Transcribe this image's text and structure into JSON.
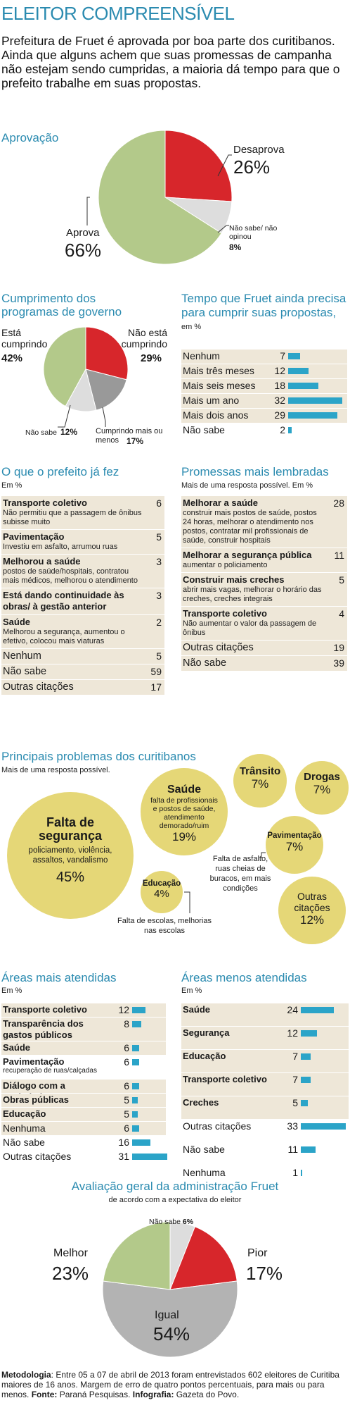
{
  "header": {
    "title": "ELEITOR COMPREENSÍVEL",
    "intro": "Prefeitura de Fruet é aprovada por boa parte dos curitibanos. Ainda que alguns achem que suas promessas de campanha não estejam sendo cumpridas, a maioria dá tempo para que o prefeito trabalhe em suas propostas."
  },
  "colors": {
    "green": "#b3c98a",
    "red": "#d7262b",
    "gray": "#c5c5c5",
    "lightgray": "#dddddd",
    "blue": "#2b8bb0",
    "bar": "#2ba4c8",
    "yellow": "#e5d777",
    "shade": "#eee7d8"
  },
  "aprovacao": {
    "title": "Aprovação",
    "labels": {
      "desaprova": "Desaprova",
      "desaprova_value": "26%",
      "nao_sabe": "Não sabe/ não opinou",
      "nao_sabe_value": "8%",
      "aprova": "Aprova",
      "aprova_value": "66%"
    }
  },
  "cumprimento": {
    "title": "Cumprimento dos programas de governo",
    "labels": {
      "cumprindo": "Está cumprindo",
      "cumprindo_value": "42%",
      "nao_cumprindo": "Não está cumprindo",
      "nao_cumprindo_value": "29%",
      "nao_sabe": "Não sabe",
      "nao_sabe_value": "12%",
      "mais_menos": "Cumprindo mais ou menos",
      "mais_menos_value": "17%"
    }
  },
  "tempo": {
    "title": "Tempo que Fruet ainda precisa para cumprir suas propostas,",
    "unit": "em %"
  },
  "prefeito_fez": {
    "title": "O que o prefeito já fez",
    "unit": "Em %",
    "items": [
      {
        "label": "Transporte coletivo",
        "desc": "Não permitiu que a passagem de ônibus subisse muito",
        "value": "6"
      },
      {
        "label": "Pavimentação",
        "desc": "Investiu em asfalto, arrumou ruas",
        "value": "5"
      },
      {
        "label": "Melhorou a saúde",
        "desc": "postos de saúde/hospitais, contratou mais médicos, melhorou o atendimento",
        "value": "3"
      },
      {
        "label": "Está dando continuidade às obras/ à gestão anterior",
        "desc": "",
        "value": "3"
      },
      {
        "label": "Saúde",
        "desc": "Melhorou a segurança, aumentou o efetivo, colocou mais viaturas",
        "value": "2"
      },
      {
        "label": "Nenhum",
        "desc": "",
        "value": "5"
      },
      {
        "label": "Não sabe",
        "desc": "",
        "value": "59"
      },
      {
        "label": "Outras citações",
        "desc": "",
        "value": "17"
      }
    ]
  },
  "promessas": {
    "title": "Promessas mais lembradas",
    "unit": "Mais de uma resposta possível. Em %",
    "items": [
      {
        "label": "Melhorar a saúde",
        "desc": "construir mais postos de saúde, postos 24 horas, melhorar o atendimento nos postos, contratar mil profissionais de saúde, construir hospitais",
        "value": "28"
      },
      {
        "label": "Melhorar a segurança pública",
        "desc": "aumentar o policiamento",
        "value": "11"
      },
      {
        "label": "Construir mais creches",
        "desc": "abrir mais vagas, melhorar o horário das creches, creches integrais",
        "value": "5"
      },
      {
        "label": "Transporte coletivo",
        "desc": "Não aumentar o valor da passagem de ônibus",
        "value": "4"
      },
      {
        "label": "Outras citações",
        "desc": "",
        "value": "19"
      },
      {
        "label": "Não sabe",
        "desc": "",
        "value": "39"
      }
    ]
  },
  "problemas": {
    "title": "Principais problemas dos curitibanos",
    "unit": "Mais de uma resposta possível.",
    "bubbles": [
      {
        "name": "Falta de segurança",
        "desc": "policiamento, violência, assaltos, vandalismo",
        "value": "45%"
      },
      {
        "name": "Saúde",
        "desc": "falta de profissionais e postos de saúde, atendimento demorado/ruim",
        "value": "19%"
      },
      {
        "name": "Trânsito",
        "desc": "",
        "value": "7%"
      },
      {
        "name": "Drogas",
        "desc": "",
        "value": "7%"
      },
      {
        "name": "Pavimentação",
        "desc": "",
        "value": "7%"
      },
      {
        "name": "Educação",
        "desc": "",
        "value": "4%"
      },
      {
        "name": "Outras citações",
        "desc": "",
        "value": "12%"
      }
    ],
    "note_pav": "Falta de asfalto, ruas cheias de buracos, em mais condições",
    "note_edu": "Falta de escolas, melhorias nas escolas"
  },
  "areas_mais": {
    "title": "Áreas mais atendidas",
    "unit": "Em %",
    "sub_pav": "recuperação de ruas/calçadas"
  },
  "areas_menos": {
    "title": "Áreas menos atendidas",
    "unit": "Em %"
  },
  "avaliacao": {
    "title": "Avaliação geral da administração Fruet",
    "subtitle": "de acordo com a expectativa do eleitor",
    "labels": {
      "melhor": "Melhor",
      "melhor_value": "23%",
      "pior": "Pior",
      "pior_value": "17%",
      "igual": "Igual",
      "igual_value": "54%",
      "nao_sabe": "Não sabe",
      "nao_sabe_value": "6%"
    }
  },
  "footer": {
    "metodologia_label": "Metodologia",
    "metodologia": ": Entre 05 a 07 de abril de 2013 foram entrevistados 602 eleitores de Curitiba maiores de 16 anos. Margem de erro de quatro pontos percentuais, para mais ou para menos.",
    "fonte_label": "Fonte:",
    "fonte": "Paraná Pesquisas.",
    "info_label": "Infografia:",
    "info": "Gazeta do Povo."
  },
  "chart_data": [
    {
      "type": "pie",
      "title": "Aprovação",
      "categories": [
        "Aprova",
        "Desaprova",
        "Não sabe/ não opinou"
      ],
      "values": [
        66,
        26,
        8
      ]
    },
    {
      "type": "pie",
      "title": "Cumprimento dos programas de governo",
      "categories": [
        "Está cumprindo",
        "Não está cumprindo",
        "Cumprindo mais ou menos",
        "Não sabe"
      ],
      "values": [
        42,
        29,
        17,
        12
      ]
    },
    {
      "type": "bar",
      "title": "Tempo que Fruet ainda precisa para cumprir suas propostas",
      "categories": [
        "Nenhum",
        "Mais três meses",
        "Mais seis meses",
        "Mais um ano",
        "Mais dois anos",
        "Não sabe"
      ],
      "values": [
        7,
        12,
        18,
        32,
        29,
        2
      ]
    },
    {
      "type": "bar",
      "title": "Áreas mais atendidas",
      "categories": [
        "Transporte coletivo",
        "Transparência dos gastos públicos",
        "Saúde",
        "Pavimentação",
        "Diálogo com a sociedade",
        "Obras públicas",
        "Educação",
        "Nenhuma",
        "Não sabe",
        "Outras citações"
      ],
      "values": [
        12,
        8,
        6,
        6,
        6,
        5,
        5,
        6,
        16,
        31
      ]
    },
    {
      "type": "bar",
      "title": "Áreas menos atendidas",
      "categories": [
        "Saúde",
        "Segurança",
        "Educação",
        "Transporte coletivo",
        "Creches",
        "Outras citações",
        "Não sabe",
        "Nenhuma"
      ],
      "values": [
        24,
        12,
        7,
        7,
        5,
        33,
        11,
        1
      ]
    },
    {
      "type": "pie",
      "title": "Avaliação geral da administração Fruet",
      "categories": [
        "Igual",
        "Melhor",
        "Pior",
        "Não sabe"
      ],
      "values": [
        54,
        23,
        17,
        6
      ]
    }
  ]
}
